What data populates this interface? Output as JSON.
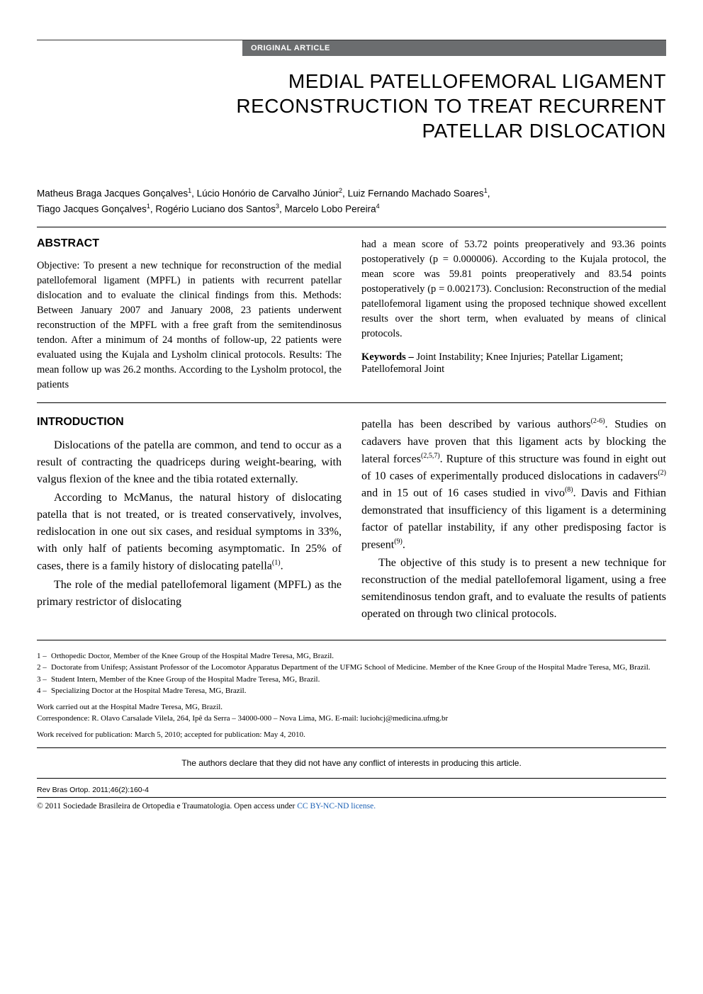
{
  "section_label": "ORIGINAL ARTICLE",
  "title_line1": "MEDIAL PATELLOFEMORAL LIGAMENT",
  "title_line2": "RECONSTRUCTION TO TREAT RECURRENT",
  "title_line3": "PATELLAR DISLOCATION",
  "authors_line1_parts": [
    {
      "name": "Matheus Braga Jacques Gonçalves",
      "sup": "1"
    },
    {
      "name": "Lúcio Honório de Carvalho Júnior",
      "sup": "2"
    },
    {
      "name": "Luiz Fernando Machado Soares",
      "sup": "1"
    }
  ],
  "authors_line2_parts": [
    {
      "name": "Tiago Jacques Gonçalves",
      "sup": "1"
    },
    {
      "name": "Rogério Luciano dos Santos",
      "sup": "3"
    },
    {
      "name": "Marcelo Lobo Pereira",
      "sup": "4"
    }
  ],
  "abstract_heading": "ABSTRACT",
  "abstract_col1": "Objective: To present a new technique for reconstruction of the medial patellofemoral ligament (MPFL) in patients with recurrent patellar dislocation and to evaluate the clinical findings from this. Methods: Between January 2007 and January 2008, 23 patients underwent reconstruction of the MPFL with a free graft from the semitendinosus tendon. After a minimum of 24 months of follow-up, 22 patients were evaluated using the Kujala and Lysholm clinical protocols. Results: The mean follow up was 26.2 months. According to the Lysholm protocol, the patients",
  "abstract_col2": "had a mean score of 53.72 points preoperatively and 93.36 points postoperatively (p = 0.000006). According to the Kujala protocol, the mean score was 59.81 points preoperatively and 83.54 points postoperatively (p = 0.002173). Conclusion: Reconstruction of the medial patellofemoral ligament using the proposed technique showed excellent results over the short term, when evaluated by means of clinical protocols.",
  "keywords_label": "Keywords –",
  "keywords_text": " Joint Instability; Knee Injuries; Patellar Ligament; Patellofemoral Joint",
  "intro_heading": "INTRODUCTION",
  "intro_col1_p1": "Dislocations of the patella are common, and tend to occur as a result of contracting the quadriceps during weight-bearing, with valgus flexion of the knee and the tibia rotated externally.",
  "intro_col1_p2_pre": "According to McManus, the natural history of dislocating patella that is not treated, or is treated conservatively, involves, redislocation in one out six cases, and residual symptoms in 33%, with only half of patients becoming asymptomatic. In 25% of cases, there is a family history of dislocating patella",
  "intro_col1_p2_ref": "(1)",
  "intro_col1_p2_post": ".",
  "intro_col1_p3": "The role of the medial patellofemoral ligament (MPFL) as the primary restrictor of dislocating",
  "intro_col2_p1_a": "patella has been described by various authors",
  "intro_col2_ref1": "(2-6)",
  "intro_col2_p1_b": ". Studies on cadavers have proven that this ligament acts by blocking the lateral forces",
  "intro_col2_ref2": "(2,5,7)",
  "intro_col2_p1_c": ". Rupture of this structure was found in eight out of 10 cases of experimentally produced dislocations in cadavers",
  "intro_col2_ref3": "(2)",
  "intro_col2_p1_d": " and in 15 out of 16 cases studied in vivo",
  "intro_col2_ref4": "(8)",
  "intro_col2_p1_e": ". Davis and Fithian demonstrated that insufficiency of this ligament is a determining factor of patellar instability, if any other predisposing factor is present",
  "intro_col2_ref5": "(9)",
  "intro_col2_p1_f": ".",
  "intro_col2_p2": "The objective of this study is to present a new technique for reconstruction of the medial patellofemoral ligament, using a free semitendinosus tendon graft, and to evaluate the results of patients operated on through two clinical protocols.",
  "affiliations": [
    {
      "num": "1 –",
      "text": "Orthopedic Doctor, Member of the Knee Group of the Hospital Madre Teresa, MG, Brazil."
    },
    {
      "num": "2 –",
      "text": "Doctorate from Unifesp; Assistant Professor of the Locomotor Apparatus Department of the UFMG School of Medicine. Member of the Knee Group of the Hospital Madre Teresa, MG, Brazil."
    },
    {
      "num": "3 –",
      "text": "Student Intern, Member of the Knee Group of the Hospital Madre Teresa, MG, Brazil."
    },
    {
      "num": "4 –",
      "text": "Specializing Doctor at the Hospital Madre Teresa, MG, Brazil."
    }
  ],
  "work_location": "Work carried out at the Hospital Madre Teresa, MG, Brazil.",
  "correspondence": "Correspondence: R. Olavo Carsalade Vilela, 264, Ipê da Serra – 34000-000 – Nova Lima, MG. E-mail: luciohcj@medicina.ufmg.br",
  "work_received": "Work received for publication: March 5, 2010; accepted for publication: May 4, 2010.",
  "conflict_text": "The authors declare that they did not have any conflict of interests in producing this article.",
  "citation": "Rev Bras Ortop. 2011;46(2):160-4",
  "license_pre": "© 2011 Sociedade Brasileira de Ortopedia e Traumatologia. Open access under ",
  "license_link": "CC BY-NC-ND license."
}
